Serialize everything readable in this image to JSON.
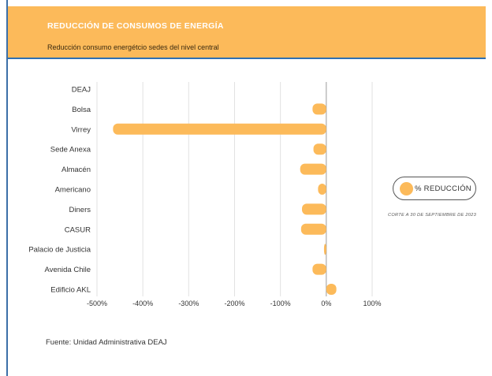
{
  "header": {
    "title": "REDUCCIÓN DE CONSUMOS DE ENERGÍA",
    "subtitle": "Reducción consumo energétcio sedes del nivel central"
  },
  "legend": {
    "label": "% REDUCCIÓN",
    "note": "CORTE A 30 DE SEPTIEMBRE DE 2023"
  },
  "source": "Fuente:  Unidad Administrativa DEAJ",
  "colors": {
    "header_bg": "#fcba5a",
    "bar": "#fcba5a",
    "header_rule": "#2f6fb0"
  },
  "chart_data": {
    "type": "bar",
    "orientation": "horizontal",
    "categories": [
      "DEAJ",
      "Bolsa",
      "Virrey",
      "Sede Anexa",
      "Almacén",
      "Americano",
      "Diners",
      "CASUR",
      "Palacio de Justicia",
      "Avenida Chile",
      "Edificio AKL"
    ],
    "series": [
      {
        "name": "% REDUCCIÓN",
        "values": [
          0,
          -30,
          -465,
          -28,
          -57,
          -18,
          -53,
          -55,
          -5,
          -30,
          22
        ]
      }
    ],
    "xlim": [
      -500,
      100
    ],
    "xticks": [
      -500,
      -400,
      -300,
      -200,
      -100,
      0,
      100
    ],
    "xtick_labels": [
      "-500%",
      "-400%",
      "-300%",
      "-200%",
      "-100%",
      "0%",
      "100%"
    ],
    "grid": "vertical",
    "legend_position": "right"
  }
}
